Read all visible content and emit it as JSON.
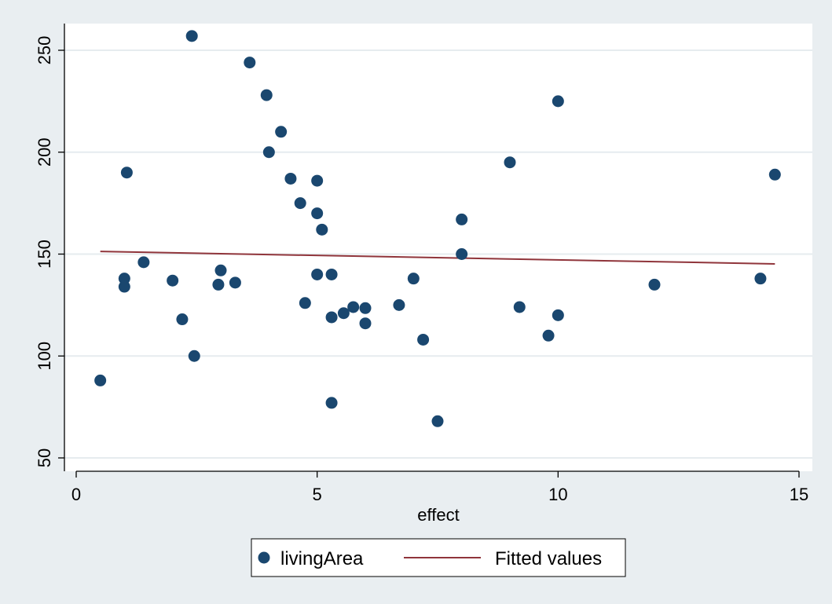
{
  "chart_data": {
    "type": "scatter",
    "title": "",
    "xlabel": "effect",
    "ylabel": "",
    "xlim": [
      0,
      15
    ],
    "ylim": [
      50,
      260
    ],
    "xticks": [
      0,
      5,
      10,
      15
    ],
    "yticks": [
      50,
      100,
      150,
      200,
      250
    ],
    "xtick_labels": [
      "0",
      "5",
      "10",
      "15"
    ],
    "ytick_labels": [
      "50",
      "100",
      "150",
      "200",
      "250"
    ],
    "grid": "horizontal",
    "legend_position": "bottom",
    "series": [
      {
        "name": "livingArea",
        "kind": "scatter",
        "color": "#1a476f",
        "points": [
          [
            0.5,
            88
          ],
          [
            1.0,
            138
          ],
          [
            1.0,
            134
          ],
          [
            1.05,
            190
          ],
          [
            1.4,
            146
          ],
          [
            2.0,
            137
          ],
          [
            2.2,
            118
          ],
          [
            2.4,
            257
          ],
          [
            2.45,
            100
          ],
          [
            2.95,
            135
          ],
          [
            3.0,
            142
          ],
          [
            3.3,
            136
          ],
          [
            3.6,
            244
          ],
          [
            3.95,
            228
          ],
          [
            4.0,
            200
          ],
          [
            4.25,
            210
          ],
          [
            4.45,
            187
          ],
          [
            4.65,
            175
          ],
          [
            4.75,
            126
          ],
          [
            5.0,
            186
          ],
          [
            5.0,
            170
          ],
          [
            5.0,
            140
          ],
          [
            5.1,
            162
          ],
          [
            5.3,
            140
          ],
          [
            5.3,
            119
          ],
          [
            5.3,
            77
          ],
          [
            5.55,
            121
          ],
          [
            5.75,
            124
          ],
          [
            6.0,
            123.5
          ],
          [
            6.0,
            116
          ],
          [
            6.7,
            125
          ],
          [
            7.0,
            138
          ],
          [
            7.2,
            108
          ],
          [
            7.5,
            68
          ],
          [
            8.0,
            167
          ],
          [
            8.0,
            150
          ],
          [
            9.0,
            195
          ],
          [
            9.2,
            124
          ],
          [
            9.8,
            110
          ],
          [
            10.0,
            225
          ],
          [
            10.0,
            120
          ],
          [
            12.0,
            135
          ],
          [
            14.2,
            138
          ],
          [
            14.5,
            189
          ]
        ]
      },
      {
        "name": "Fitted values",
        "kind": "line",
        "color": "#90353b",
        "points": [
          [
            0.5,
            151.3
          ],
          [
            14.5,
            145.2
          ]
        ]
      }
    ]
  },
  "legend": {
    "items": [
      "livingArea",
      "Fitted values"
    ]
  },
  "colors": {
    "background": "#e9eef1",
    "plot_background": "#ffffff",
    "grid": "#e6ecef",
    "marker": "#1a476f",
    "fit_line": "#90353b"
  }
}
